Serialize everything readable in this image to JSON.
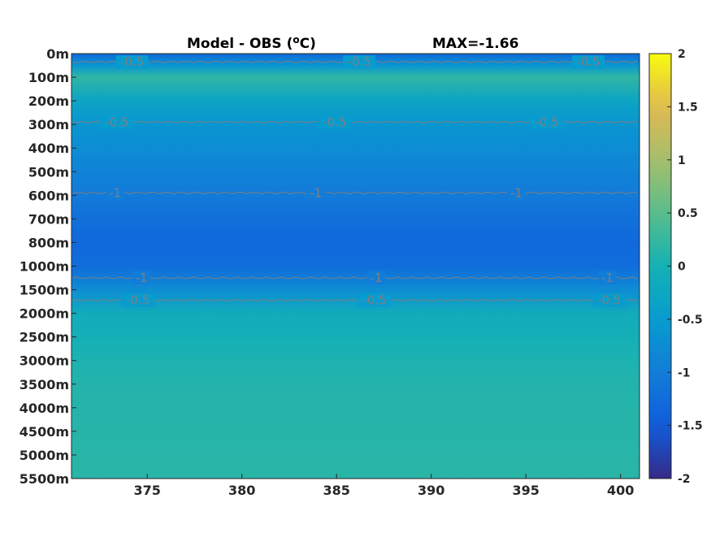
{
  "chart_data": {
    "type": "heatmap",
    "title": "Model - OBS (",
    "title_superscript": "o",
    "title_unit_suffix": "C)",
    "max_label": "MAX=-1.66",
    "xlabel": "",
    "ylabel": "",
    "x_range": [
      371,
      401
    ],
    "x_ticks": [
      375,
      380,
      385,
      390,
      395,
      400
    ],
    "x_tick_labels": [
      "375",
      "380",
      "385",
      "390",
      "395",
      "400"
    ],
    "y_tick_labels": [
      "0m",
      "100m",
      "200m",
      "300m",
      "400m",
      "500m",
      "600m",
      "700m",
      "800m",
      "1000m",
      "1500m",
      "2000m",
      "2500m",
      "3000m",
      "3500m",
      "4000m",
      "4500m",
      "5000m",
      "5500m"
    ],
    "profile": [
      {
        "level": "0m",
        "value": -1.3
      },
      {
        "level": "50m",
        "value": -0.6
      },
      {
        "level": "100m",
        "value": 0.2
      },
      {
        "level": "200m",
        "value": -0.3
      },
      {
        "level": "300m",
        "value": -0.6
      },
      {
        "level": "400m",
        "value": -0.75
      },
      {
        "level": "500m",
        "value": -0.9
      },
      {
        "level": "600m",
        "value": -1.05
      },
      {
        "level": "700m",
        "value": -1.2
      },
      {
        "level": "800m",
        "value": -1.3
      },
      {
        "level": "1000m",
        "value": -1.25
      },
      {
        "level": "1500m",
        "value": -0.75
      },
      {
        "level": "2000m",
        "value": -0.15
      },
      {
        "level": "2500m",
        "value": -0.05
      },
      {
        "level": "3000m",
        "value": 0.05
      },
      {
        "level": "3500m",
        "value": 0.1
      },
      {
        "level": "4000m",
        "value": 0.12
      },
      {
        "level": "5500m",
        "value": 0.15
      }
    ],
    "contours": [
      {
        "value": "-0.5",
        "level_index": 0.35,
        "labels_x": [
          374.2,
          386.2,
          398.3
        ]
      },
      {
        "value": "-0.5",
        "level_index": 2.9,
        "labels_x": [
          373.4,
          384.9,
          396.1
        ]
      },
      {
        "value": "-1",
        "level_index": 5.9,
        "labels_x": [
          373.3,
          383.9,
          394.5
        ]
      },
      {
        "value": "-1",
        "level_index": 9.5,
        "labels_x": [
          374.7,
          387.1,
          399.3
        ]
      },
      {
        "value": "-0.5",
        "level_index": 10.45,
        "labels_x": [
          374.5,
          387.0,
          399.4
        ]
      }
    ],
    "colorbar": {
      "range": [
        -2,
        2
      ],
      "ticks": [
        "2",
        "1.5",
        "1",
        "0.5",
        "0",
        "-0.5",
        "-1",
        "-1.5",
        "-2"
      ]
    },
    "colors": {
      "contour": "#7f7f7f",
      "axis": "#262626"
    }
  }
}
